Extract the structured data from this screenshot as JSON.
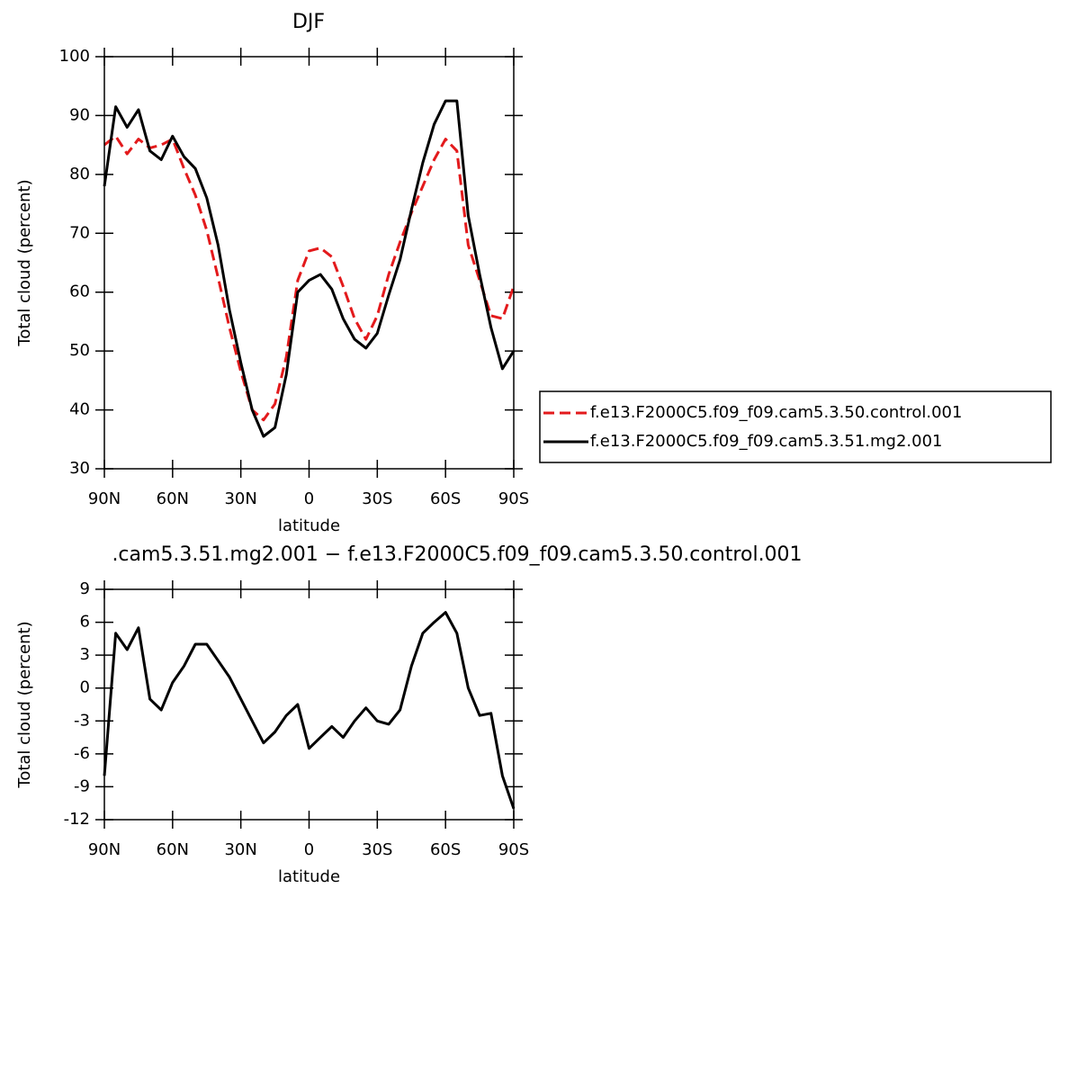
{
  "chart_data": [
    {
      "type": "line",
      "title": "DJF",
      "xlabel": "latitude",
      "ylabel": "Total cloud (percent)",
      "x": [
        90,
        85,
        80,
        75,
        70,
        65,
        60,
        55,
        50,
        45,
        40,
        35,
        30,
        25,
        20,
        15,
        10,
        5,
        0,
        -5,
        -10,
        -15,
        -20,
        -25,
        -30,
        -35,
        -40,
        -45,
        -50,
        -55,
        -60,
        -65,
        -70,
        -75,
        -80,
        -85,
        -90
      ],
      "xlim": [
        90,
        -90
      ],
      "xticks": [
        {
          "value": 90,
          "label": "90N"
        },
        {
          "value": 60,
          "label": "60N"
        },
        {
          "value": 30,
          "label": "30N"
        },
        0,
        {
          "value": -30,
          "label": "30S"
        },
        {
          "value": -60,
          "label": "60S"
        },
        {
          "value": -90,
          "label": "90S"
        }
      ],
      "ylim": [
        30,
        100
      ],
      "yticks": [
        30,
        40,
        50,
        60,
        70,
        80,
        90,
        100
      ],
      "legend": "right",
      "series": [
        {
          "name": "f.e13.F2000C5.f09_f09.cam5.3.50.control.001",
          "color": "#e31a1c",
          "line_style": "dashed",
          "values": [
            85,
            86.5,
            83.5,
            86,
            84.5,
            85,
            86,
            81,
            76.5,
            70.5,
            62.5,
            54,
            46.5,
            40,
            38.3,
            41,
            49,
            62,
            67,
            67.5,
            66,
            61,
            55.5,
            52,
            56,
            63,
            68.5,
            73.5,
            78,
            82.5,
            86,
            84,
            68,
            62,
            56,
            55.5,
            61
          ]
        },
        {
          "name": "f.e13.F2000C5.f09_f09.cam5.3.51.mg2.001",
          "color": "#000000",
          "line_style": "solid",
          "values": [
            78,
            91.5,
            88,
            91,
            84,
            82.5,
            86.5,
            83,
            81,
            76,
            68,
            57,
            48,
            40,
            35.5,
            37,
            46,
            60,
            62,
            63,
            60.5,
            55.5,
            52,
            50.5,
            53,
            59.5,
            65.5,
            74,
            82,
            88.5,
            92.5,
            92.5,
            73,
            63,
            54,
            47,
            50
          ]
        }
      ]
    },
    {
      "type": "line",
      "title": ".cam5.3.51.mg2.001 − f.e13.F2000C5.f09_f09.cam5.3.50.control.001",
      "xlabel": "latitude",
      "ylabel": "Total cloud (percent)",
      "x": [
        90,
        85,
        80,
        75,
        70,
        65,
        60,
        55,
        50,
        45,
        40,
        35,
        30,
        25,
        20,
        15,
        10,
        5,
        0,
        -5,
        -10,
        -15,
        -20,
        -25,
        -30,
        -35,
        -40,
        -45,
        -50,
        -55,
        -60,
        -65,
        -70,
        -75,
        -80,
        -85,
        -90
      ],
      "xlim": [
        90,
        -90
      ],
      "xticks": [
        {
          "value": 90,
          "label": "90N"
        },
        {
          "value": 60,
          "label": "60N"
        },
        {
          "value": 30,
          "label": "30N"
        },
        0,
        {
          "value": -30,
          "label": "30S"
        },
        {
          "value": -60,
          "label": "60S"
        },
        {
          "value": -90,
          "label": "90S"
        }
      ],
      "ylim": [
        -12,
        9
      ],
      "yticks": [
        -12,
        -9,
        -6,
        -3,
        0,
        3,
        6,
        9
      ],
      "series": [
        {
          "color": "#000000",
          "line_style": "solid",
          "values": [
            -8,
            5,
            3.5,
            5.5,
            -1,
            -2,
            0.5,
            2,
            4,
            4,
            2.5,
            1,
            -1,
            -3,
            -5,
            -4,
            -2.5,
            -1.5,
            -5.5,
            -4.5,
            -3.5,
            -4.5,
            -3,
            -1.8,
            -3,
            -3.3,
            -2,
            2,
            5,
            6,
            6.9,
            5,
            0,
            -2.5,
            -2.3,
            -8,
            -11
          ]
        }
      ]
    }
  ]
}
